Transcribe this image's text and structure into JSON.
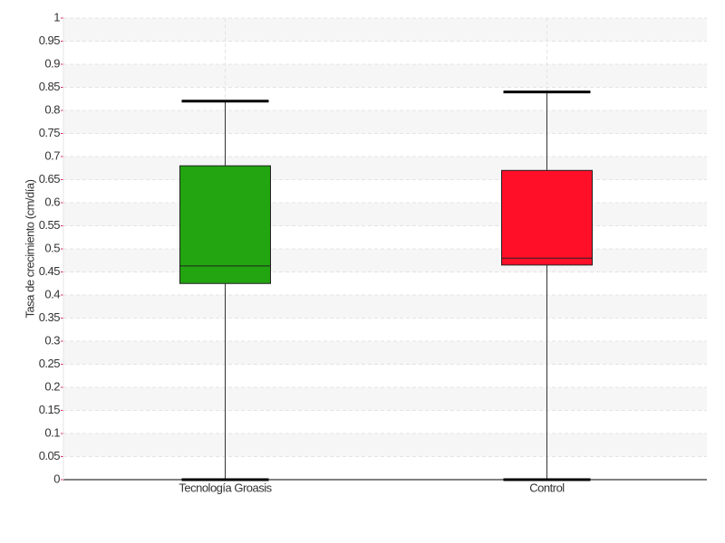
{
  "chart_data": {
    "type": "box",
    "y_label": "Tasa de crecimiento (cm/día)",
    "categories": [
      "Tecnología Groasis",
      "Control"
    ],
    "colors": [
      "#22a511",
      "#ff0f28"
    ],
    "min": [
      0,
      0
    ],
    "q1": [
      0.425,
      0.465
    ],
    "median": [
      0.463,
      0.48
    ],
    "q3": [
      0.68,
      0.67
    ],
    "max": [
      0.82,
      0.84
    ],
    "ylim": [
      0,
      1
    ],
    "yticks": [
      0,
      0.05,
      0.1,
      0.15,
      0.2,
      0.25,
      0.3,
      0.35,
      0.4,
      0.45,
      0.5,
      0.55,
      0.6,
      0.65,
      0.7,
      0.75,
      0.8,
      0.85,
      0.9,
      0.95,
      1
    ],
    "grid": true
  }
}
